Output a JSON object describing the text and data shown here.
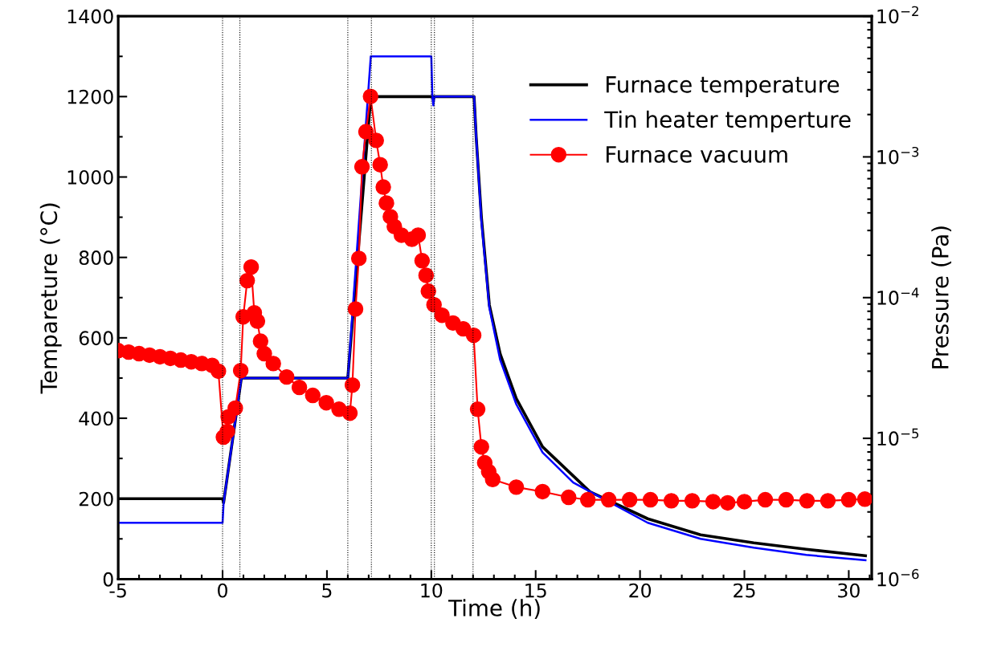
{
  "chart_data": {
    "type": "line",
    "xlabel": "Time (h)",
    "ylabel": "Tempareture (°C)",
    "y2label": "Pressure (Pa)",
    "xlim": [
      -5,
      31.1
    ],
    "xticks": [
      -5,
      0,
      5,
      10,
      15,
      20,
      25,
      30
    ],
    "ylim": [
      0,
      1400
    ],
    "yticks": [
      0,
      200,
      400,
      600,
      800,
      1000,
      1200,
      1400
    ],
    "y2lim": [
      1e-06,
      0.01
    ],
    "log": "y2",
    "y2ticks": [
      {
        "value": 1e-06,
        "label": "10$^{−6}$"
      },
      {
        "value": 1e-05,
        "label": "10$^{−5}$"
      },
      {
        "value": 0.0001,
        "label": "10$^{−4}$"
      },
      {
        "value": 0.001,
        "label": "10$^{−3}$"
      },
      {
        "value": 0.01,
        "label": "10$^{−2}$"
      }
    ],
    "grid": false,
    "legend": "top right",
    "ref_lines": [
      {
        "axis": "x",
        "value": 0,
        "color": "#000000",
        "line_style": "dotted"
      },
      {
        "axis": "x",
        "value": 0.83,
        "color": "#000000",
        "line_style": "dotted"
      },
      {
        "axis": "x",
        "value": 6,
        "color": "#000000",
        "line_style": "dotted"
      },
      {
        "axis": "x",
        "value": 7.13,
        "color": "#000000",
        "line_style": "dotted"
      },
      {
        "axis": "x",
        "value": 10,
        "color": "#000000",
        "line_style": "dotted"
      },
      {
        "axis": "x",
        "value": 10.15,
        "color": "#000000",
        "line_style": "dotted"
      },
      {
        "axis": "x",
        "value": 12,
        "color": "#000000",
        "line_style": "dotted"
      }
    ],
    "series": [
      {
        "name": "Furnace temperature",
        "color": "#000000",
        "marker": "none",
        "x": [
          -5,
          0,
          0.05,
          0.9,
          6.0,
          7.1,
          12.05,
          12.15,
          12.4,
          12.78,
          13.3,
          14.07,
          15.33,
          17.6,
          20.37,
          22.9,
          25.45,
          27.96,
          30.8
        ],
        "values": [
          200,
          200,
          190,
          500,
          500,
          1200,
          1200,
          1100,
          900,
          682,
          560,
          449,
          329,
          217,
          150,
          110,
          90,
          74,
          58
        ]
      },
      {
        "name": "Tin heater temperture",
        "color": "#0000ff",
        "marker": "none",
        "x": [
          -5,
          0,
          0.05,
          0.9,
          6.0,
          7.1,
          10.0,
          10.05,
          10.1,
          10.15,
          12.05,
          12.15,
          12.4,
          12.78,
          13.3,
          14.07,
          15.33,
          16.8,
          20.37,
          22.9,
          25.45,
          27.96,
          30.8
        ],
        "values": [
          140,
          140,
          190,
          500,
          500,
          1300,
          1300,
          1200,
          1178,
          1200,
          1200,
          1100,
          890,
          675,
          545,
          435,
          315,
          240,
          140,
          100,
          78,
          60,
          47
        ]
      },
      {
        "name": "Furnace vacuum",
        "color": "#ff0000",
        "marker": "circle",
        "axis": "y2",
        "x": [
          -5,
          -4.5,
          -4,
          -3.5,
          -3,
          -2.5,
          -2,
          -1.5,
          -1,
          -0.5,
          -0.2,
          0.04,
          0.23,
          0.27,
          0.61,
          0.87,
          0.99,
          1.18,
          1.37,
          1.52,
          1.67,
          1.82,
          2.0,
          2.43,
          3.07,
          3.68,
          4.32,
          4.97,
          5.58,
          6.1,
          6.22,
          6.37,
          6.53,
          6.68,
          6.87,
          7.09,
          7.36,
          7.55,
          7.7,
          7.85,
          8.04,
          8.23,
          8.57,
          9.07,
          9.37,
          9.56,
          9.75,
          9.86,
          10.13,
          10.51,
          11.04,
          11.53,
          12.03,
          12.22,
          12.4,
          12.56,
          12.75,
          12.94,
          14.07,
          15.33,
          16.58,
          17.5,
          18.5,
          19.5,
          20.5,
          21.5,
          22.5,
          23.5,
          24.2,
          25,
          26,
          27,
          28,
          29,
          30,
          30.77
        ],
        "values": [
          4.2e-05,
          4.1e-05,
          4e-05,
          3.9e-05,
          3.8e-05,
          3.7e-05,
          3.6e-05,
          3.5e-05,
          3.4e-05,
          3.3e-05,
          3e-05,
          1.02e-05,
          1.12e-05,
          1.42e-05,
          1.64e-05,
          3.03e-05,
          7.3e-05,
          0.000132,
          0.000165,
          7.8e-05,
          6.8e-05,
          4.9e-05,
          4e-05,
          3.4e-05,
          2.73e-05,
          2.3e-05,
          2.02e-05,
          1.79e-05,
          1.61e-05,
          1.51e-05,
          2.39e-05,
          8.3e-05,
          0.00019,
          0.00085,
          0.00151,
          0.00269,
          0.00131,
          0.00088,
          0.00061,
          0.00047,
          0.000376,
          0.00032,
          0.000278,
          0.00026,
          0.000278,
          0.000183,
          0.000144,
          0.000111,
          8.9e-05,
          7.5e-05,
          6.6e-05,
          6e-05,
          5.4e-05,
          1.61e-05,
          8.7e-06,
          6.7e-06,
          5.8e-06,
          5.1e-06,
          4.5e-06,
          4.18e-06,
          3.81e-06,
          3.66e-06,
          3.66e-06,
          3.66e-06,
          3.66e-06,
          3.6e-06,
          3.6e-06,
          3.55e-06,
          3.48e-06,
          3.55e-06,
          3.66e-06,
          3.66e-06,
          3.6e-06,
          3.6e-06,
          3.66e-06,
          3.7e-06
        ]
      }
    ]
  }
}
